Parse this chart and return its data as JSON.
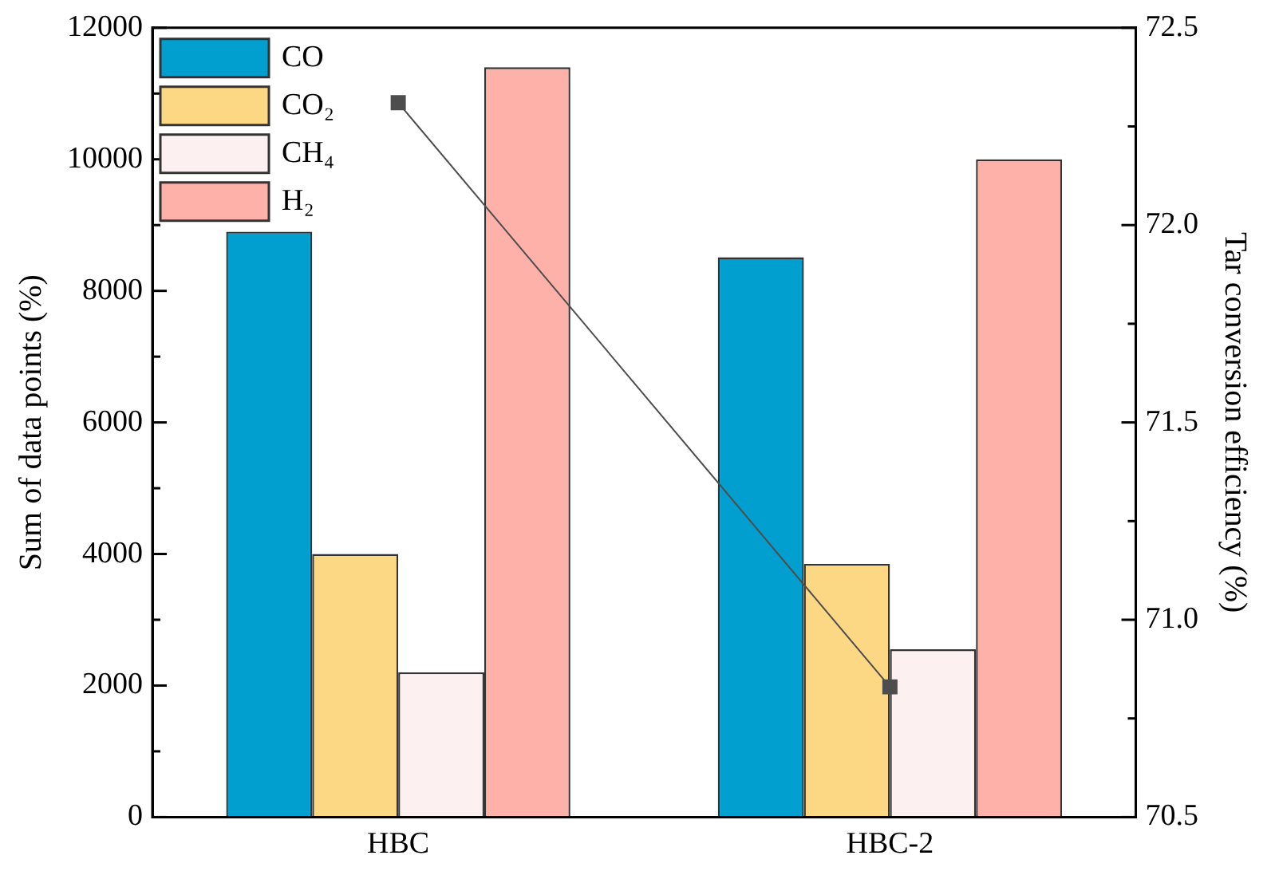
{
  "chart_data": {
    "type": "bar",
    "categories": [
      "HBC",
      "HBC-2"
    ],
    "ylabel": "Sum of data points (%)",
    "y2label": "Tar conversion efficiency (%)",
    "series": [
      {
        "name": "CO",
        "color": "#009fd0",
        "values": [
          8900,
          8510
        ]
      },
      {
        "name": "CO₂",
        "color": "#fdd884",
        "values": [
          4000,
          3850
        ]
      },
      {
        "name": "CH₄",
        "color": "#fdf0f0",
        "values": [
          2200,
          2550
        ]
      },
      {
        "name": "H₂",
        "color": "#fdb1a8",
        "values": [
          11400,
          10000
        ]
      },
      {
        "type": "line",
        "axis": "y2",
        "color": "#4d4d4d",
        "values": [
          72.31,
          70.83
        ],
        "marker": "square"
      }
    ],
    "ylim": [
      0,
      12000
    ],
    "yticks": [
      0,
      {
        "value": 1000,
        "label": null
      },
      2000,
      {
        "value": 3000,
        "label": null
      },
      4000,
      {
        "value": 5000,
        "label": null
      },
      6000,
      {
        "value": 7000,
        "label": null
      },
      8000,
      {
        "value": 9000,
        "label": null
      },
      10000,
      {
        "value": 11000,
        "label": null
      },
      12000
    ],
    "y2lim": [
      70.5,
      72.5
    ],
    "y2ticks": [
      70.5,
      {
        "value": 70.75,
        "label": null
      },
      "71.0",
      {
        "value": 71.25,
        "label": null
      },
      71.5,
      {
        "value": 71.75,
        "label": null
      },
      "72.0",
      {
        "value": 72.25,
        "label": null
      },
      72.5
    ],
    "legend": "top left",
    "grid": false
  }
}
